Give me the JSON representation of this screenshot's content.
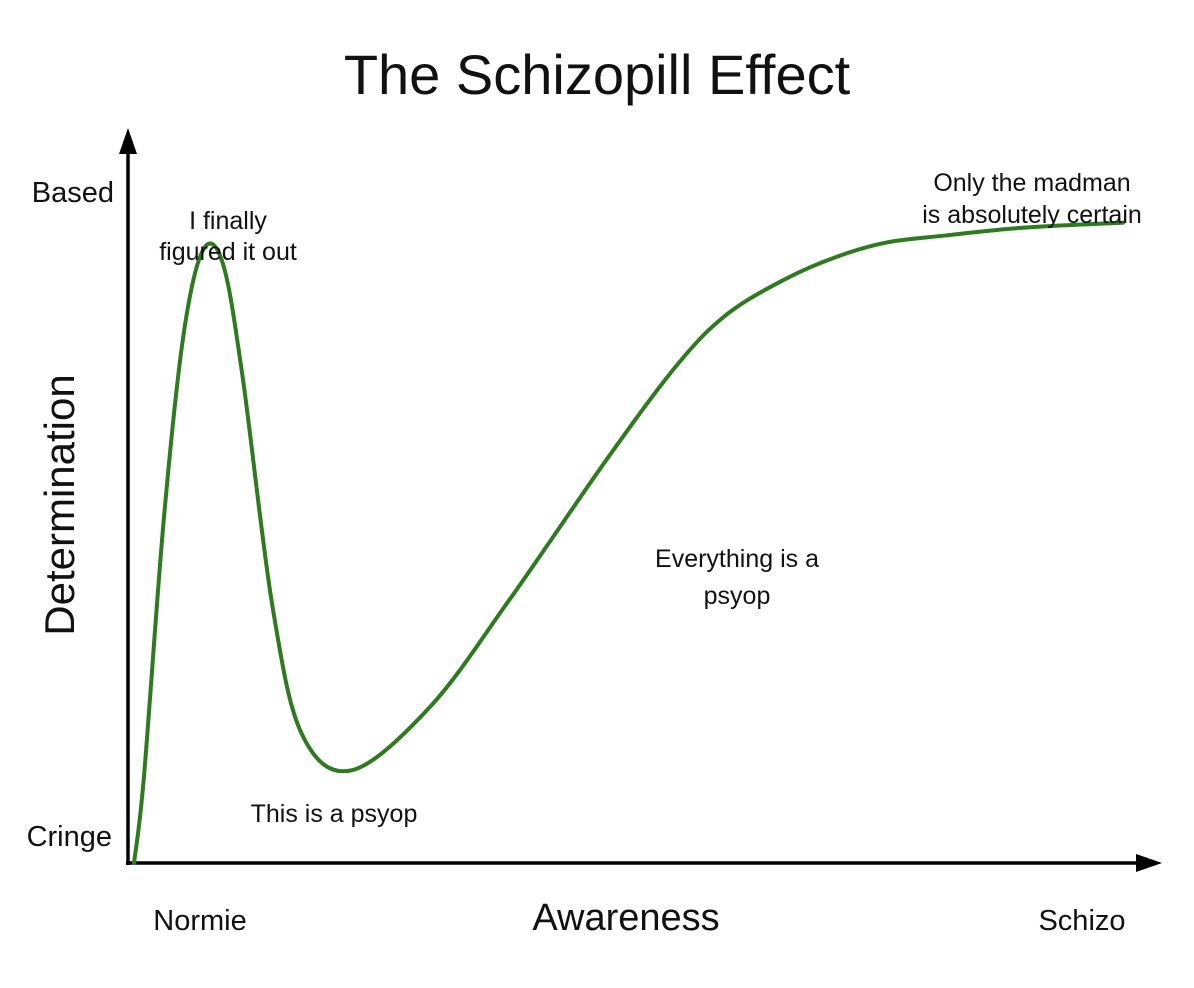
{
  "chart_data": {
    "type": "line",
    "title": "The Schizopill Effect",
    "xlabel": "Awareness",
    "ylabel": "Determination",
    "x_tick_labels": [
      "Normie",
      "Schizo"
    ],
    "y_tick_labels": [
      "Cringe",
      "Based"
    ],
    "x": [
      0,
      1,
      3,
      5,
      7,
      9,
      11,
      14,
      17,
      22,
      30,
      38,
      48,
      55,
      60,
      66,
      71,
      76,
      82,
      89,
      95,
      100
    ],
    "y": [
      0,
      12,
      48,
      74,
      86,
      84,
      68,
      36,
      18,
      13,
      22,
      37,
      57,
      70,
      77,
      82,
      85,
      87,
      88,
      89,
      89.5,
      89.8
    ],
    "xlim": [
      0,
      100
    ],
    "ylim": [
      0,
      100
    ],
    "grid": false,
    "line_color": "#2e7a1e",
    "annotations": [
      "I finally\nfigured it out",
      "This is a psyop",
      "Everything is a\npsyop",
      "Only the madman\nis absolutely certain"
    ]
  }
}
